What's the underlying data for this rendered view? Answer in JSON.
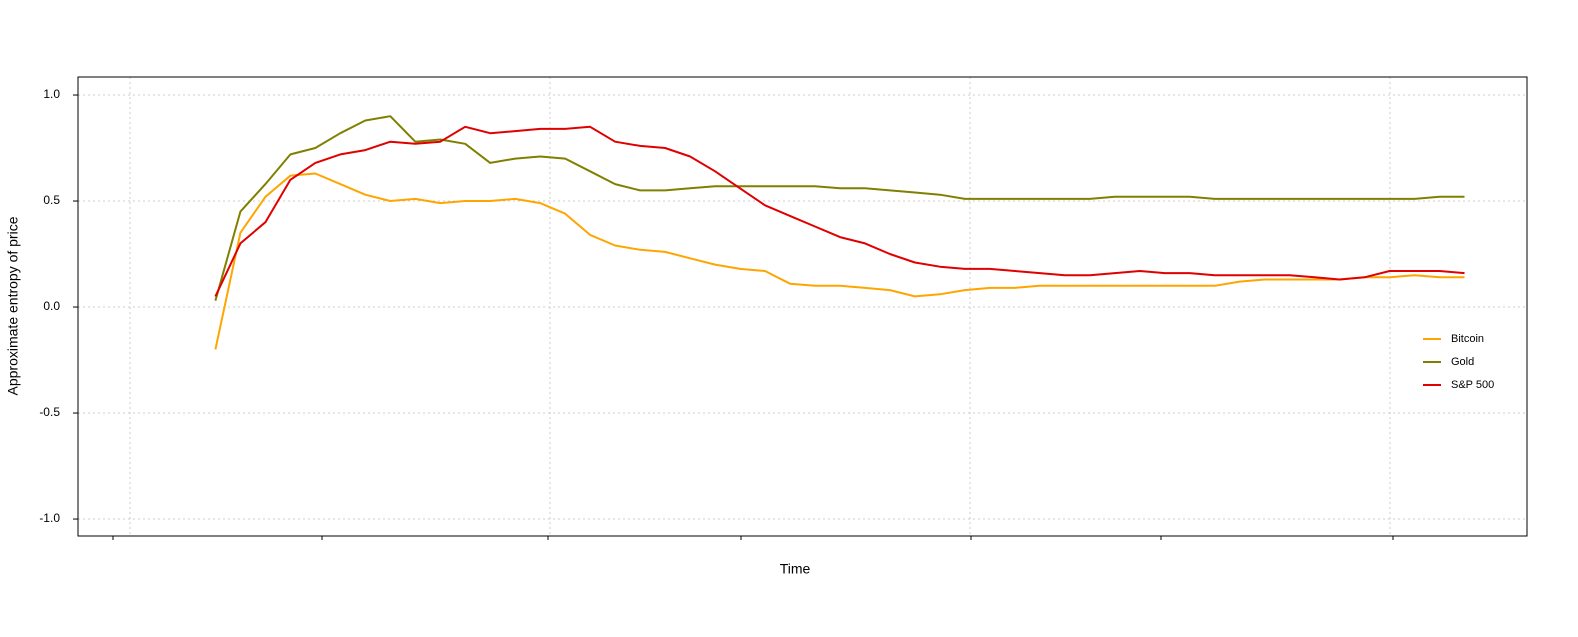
{
  "chart_data": {
    "type": "line",
    "x_label": "Time",
    "y_label": "Approximate entropy of price",
    "categories": [
      null,
      null,
      null,
      null,
      null,
      null,
      null,
      null,
      null,
      null,
      null,
      null,
      null,
      null,
      null,
      null,
      null,
      null,
      null,
      null,
      null,
      null,
      null,
      null,
      null,
      null,
      null,
      null,
      null,
      null,
      null,
      null,
      null,
      null,
      null,
      null,
      null,
      null,
      null,
      null,
      null,
      null,
      null,
      null,
      null,
      null,
      null,
      null,
      null,
      null,
      null,
      null,
      null,
      null,
      null,
      null,
      null,
      null
    ],
    "series": [
      {
        "name": "Bitcoin",
        "color": "#ffa500",
        "values": [
          null,
          null,
          null,
          null,
          null,
          -0.2,
          0.35,
          0.52,
          0.62,
          0.63,
          0.58,
          0.53,
          0.5,
          0.51,
          0.49,
          0.5,
          0.5,
          0.51,
          0.49,
          0.44,
          0.34,
          0.29,
          0.27,
          0.26,
          0.23,
          0.2,
          0.18,
          0.17,
          0.11,
          0.1,
          0.1,
          0.09,
          0.08,
          0.05,
          0.06,
          0.08,
          0.09,
          0.09,
          0.1,
          0.1,
          0.1,
          0.1,
          0.1,
          0.1,
          0.1,
          0.1,
          0.12,
          0.13,
          0.13,
          0.13,
          0.13,
          0.14,
          0.14,
          0.15,
          0.14,
          0.14,
          null,
          null
        ]
      },
      {
        "name": "Gold",
        "color": "#808000",
        "values": [
          null,
          null,
          null,
          null,
          null,
          0.03,
          0.45,
          0.58,
          0.72,
          0.75,
          0.82,
          0.88,
          0.9,
          0.78,
          0.79,
          0.77,
          0.68,
          0.7,
          0.71,
          0.7,
          0.64,
          0.58,
          0.55,
          0.55,
          0.56,
          0.57,
          0.57,
          0.57,
          0.57,
          0.57,
          0.56,
          0.56,
          0.55,
          0.54,
          0.53,
          0.51,
          0.51,
          0.51,
          0.51,
          0.51,
          0.51,
          0.52,
          0.52,
          0.52,
          0.52,
          0.51,
          0.51,
          0.51,
          0.51,
          0.51,
          0.51,
          0.51,
          0.51,
          0.51,
          0.52,
          0.52,
          null,
          null
        ]
      },
      {
        "name": "S&P 500",
        "color": "#e00000",
        "values": [
          null,
          null,
          null,
          null,
          null,
          0.05,
          0.3,
          0.4,
          0.6,
          0.68,
          0.72,
          0.74,
          0.78,
          0.77,
          0.78,
          0.85,
          0.82,
          0.83,
          0.84,
          0.84,
          0.85,
          0.78,
          0.76,
          0.75,
          0.71,
          0.64,
          0.56,
          0.48,
          0.43,
          0.38,
          0.33,
          0.3,
          0.25,
          0.21,
          0.19,
          0.18,
          0.18,
          0.17,
          0.16,
          0.15,
          0.15,
          0.16,
          0.17,
          0.16,
          0.16,
          0.15,
          0.15,
          0.15,
          0.15,
          0.14,
          0.13,
          0.14,
          0.17,
          0.17,
          0.17,
          0.16,
          null,
          null
        ]
      }
    ],
    "ylim": [
      -1.08,
      1.085
    ],
    "yticks": [
      {
        "value": -1,
        "label": "-1.0"
      },
      {
        "value": -0.5,
        "label": "-0.5"
      },
      {
        "value": 0,
        "label": "0.0"
      },
      {
        "value": 0.5,
        "label": "0.5"
      },
      {
        "value": 1,
        "label": "1.0"
      }
    ],
    "grid": true,
    "legend": "right"
  }
}
